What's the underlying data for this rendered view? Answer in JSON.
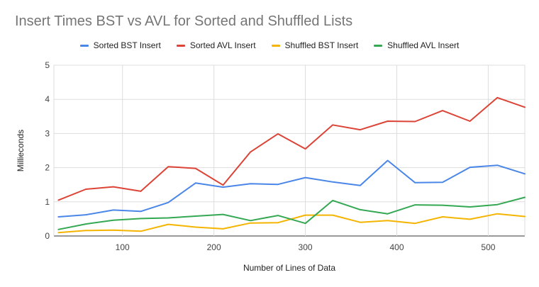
{
  "chart_data": {
    "type": "line",
    "title": "Insert Times BST vs AVL for Sorted and Shuffled Lists",
    "xlabel": "Number of Lines of Data",
    "ylabel": "Millieconds",
    "xlim": [
      25,
      540
    ],
    "ylim": [
      0,
      5
    ],
    "x_ticks": [
      100,
      200,
      300,
      400,
      500
    ],
    "y_ticks": [
      0,
      1,
      2,
      3,
      4,
      5
    ],
    "grid": true,
    "legend_position": "top",
    "x": [
      30,
      60,
      90,
      120,
      150,
      180,
      210,
      240,
      270,
      300,
      330,
      360,
      390,
      420,
      450,
      480,
      510,
      540
    ],
    "series": [
      {
        "name": "Sorted BST Insert",
        "color": "#4a86e8",
        "values": [
          0.56,
          0.62,
          0.76,
          0.72,
          0.98,
          1.55,
          1.43,
          1.53,
          1.51,
          1.71,
          1.58,
          1.48,
          2.21,
          1.56,
          1.57,
          2.01,
          2.07,
          1.82
        ]
      },
      {
        "name": "Sorted AVL Insert",
        "color": "#db4437",
        "values": [
          1.05,
          1.37,
          1.44,
          1.31,
          2.03,
          1.98,
          1.49,
          2.46,
          2.99,
          2.55,
          3.25,
          3.11,
          3.36,
          3.35,
          3.67,
          3.36,
          4.05,
          3.77
        ]
      },
      {
        "name": "Shuffled BST Insert",
        "color": "#f4b400",
        "values": [
          0.1,
          0.16,
          0.17,
          0.14,
          0.34,
          0.26,
          0.21,
          0.38,
          0.39,
          0.61,
          0.61,
          0.4,
          0.45,
          0.37,
          0.56,
          0.49,
          0.65,
          0.57
        ]
      },
      {
        "name": "Shuffled AVL Insert",
        "color": "#34a853",
        "values": [
          0.19,
          0.35,
          0.46,
          0.51,
          0.53,
          0.58,
          0.63,
          0.45,
          0.6,
          0.37,
          1.04,
          0.77,
          0.65,
          0.91,
          0.9,
          0.85,
          0.92,
          1.13
        ]
      }
    ]
  }
}
